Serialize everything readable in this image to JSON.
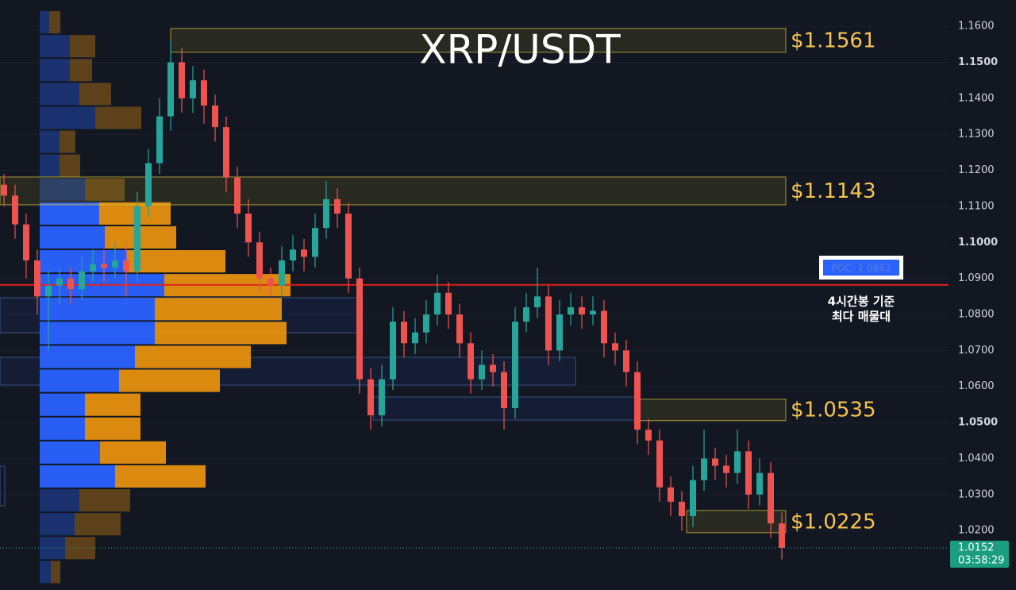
{
  "chart_data": {
    "type": "candlestick",
    "title": "XRP/USDT",
    "ylim": [
      1.0035,
      1.1673
    ],
    "yticks": [
      {
        "value": 1.02,
        "label": "1.0200"
      },
      {
        "value": 1.03,
        "label": "1.0300"
      },
      {
        "value": 1.04,
        "label": "1.0400"
      },
      {
        "value": 1.05,
        "label": "1.0500"
      },
      {
        "value": 1.06,
        "label": "1.0600"
      },
      {
        "value": 1.07,
        "label": "1.0700"
      },
      {
        "value": 1.08,
        "label": "1.0800"
      },
      {
        "value": 1.09,
        "label": "1.0900"
      },
      {
        "value": 1.1,
        "label": "1.1000"
      },
      {
        "value": 1.11,
        "label": "1.1100"
      },
      {
        "value": 1.12,
        "label": "1.1200"
      },
      {
        "value": 1.13,
        "label": "1.1300"
      },
      {
        "value": 1.14,
        "label": "1.1400"
      },
      {
        "value": 1.15,
        "label": "1.1500"
      },
      {
        "value": 1.16,
        "label": "1.1600"
      }
    ],
    "grid": true,
    "up_color": "#26a69a",
    "down_color": "#ef5350",
    "candles": [
      [
        1.116,
        1.119,
        1.11,
        1.113
      ],
      [
        1.113,
        1.116,
        1.101,
        1.105
      ],
      [
        1.105,
        1.108,
        1.09,
        1.095
      ],
      [
        1.095,
        1.098,
        1.08,
        1.085
      ],
      [
        1.085,
        1.092,
        1.07,
        1.088
      ],
      [
        1.088,
        1.093,
        1.083,
        1.09
      ],
      [
        1.09,
        1.093,
        1.083,
        1.087
      ],
      [
        1.087,
        1.096,
        1.084,
        1.092
      ],
      [
        1.092,
        1.098,
        1.089,
        1.094
      ],
      [
        1.094,
        1.098,
        1.089,
        1.093
      ],
      [
        1.093,
        1.1,
        1.09,
        1.095
      ],
      [
        1.095,
        1.099,
        1.085,
        1.092
      ],
      [
        1.092,
        1.114,
        1.089,
        1.11
      ],
      [
        1.11,
        1.126,
        1.107,
        1.122
      ],
      [
        1.122,
        1.14,
        1.119,
        1.135
      ],
      [
        1.135,
        1.1561,
        1.131,
        1.15
      ],
      [
        1.15,
        1.154,
        1.136,
        1.14
      ],
      [
        1.14,
        1.149,
        1.136,
        1.145
      ],
      [
        1.145,
        1.148,
        1.133,
        1.138
      ],
      [
        1.138,
        1.141,
        1.128,
        1.132
      ],
      [
        1.132,
        1.135,
        1.114,
        1.118
      ],
      [
        1.118,
        1.121,
        1.104,
        1.108
      ],
      [
        1.108,
        1.112,
        1.096,
        1.1
      ],
      [
        1.1,
        1.103,
        1.086,
        1.09
      ],
      [
        1.09,
        1.093,
        1.085,
        1.088
      ],
      [
        1.088,
        1.099,
        1.085,
        1.095
      ],
      [
        1.095,
        1.102,
        1.092,
        1.098
      ],
      [
        1.098,
        1.101,
        1.092,
        1.096
      ],
      [
        1.096,
        1.108,
        1.093,
        1.104
      ],
      [
        1.104,
        1.117,
        1.101,
        1.112
      ],
      [
        1.112,
        1.115,
        1.104,
        1.108
      ],
      [
        1.108,
        1.111,
        1.086,
        1.09
      ],
      [
        1.09,
        1.093,
        1.058,
        1.062
      ],
      [
        1.062,
        1.065,
        1.048,
        1.052
      ],
      [
        1.052,
        1.066,
        1.049,
        1.062
      ],
      [
        1.062,
        1.082,
        1.059,
        1.078
      ],
      [
        1.078,
        1.081,
        1.068,
        1.072
      ],
      [
        1.072,
        1.079,
        1.069,
        1.075
      ],
      [
        1.075,
        1.084,
        1.072,
        1.08
      ],
      [
        1.08,
        1.091,
        1.077,
        1.086
      ],
      [
        1.086,
        1.089,
        1.076,
        1.08
      ],
      [
        1.08,
        1.083,
        1.068,
        1.072
      ],
      [
        1.072,
        1.075,
        1.058,
        1.062
      ],
      [
        1.062,
        1.07,
        1.059,
        1.066
      ],
      [
        1.066,
        1.069,
        1.06,
        1.064
      ],
      [
        1.064,
        1.067,
        1.048,
        1.054
      ],
      [
        1.054,
        1.082,
        1.051,
        1.078
      ],
      [
        1.078,
        1.086,
        1.075,
        1.082
      ],
      [
        1.082,
        1.093,
        1.079,
        1.085
      ],
      [
        1.085,
        1.088,
        1.066,
        1.07
      ],
      [
        1.07,
        1.084,
        1.067,
        1.08
      ],
      [
        1.08,
        1.086,
        1.077,
        1.082
      ],
      [
        1.082,
        1.085,
        1.076,
        1.08
      ],
      [
        1.08,
        1.085,
        1.077,
        1.081
      ],
      [
        1.081,
        1.084,
        1.068,
        1.072
      ],
      [
        1.072,
        1.075,
        1.066,
        1.07
      ],
      [
        1.07,
        1.073,
        1.06,
        1.064
      ],
      [
        1.064,
        1.067,
        1.044,
        1.048
      ],
      [
        1.048,
        1.051,
        1.041,
        1.045
      ],
      [
        1.045,
        1.048,
        1.028,
        1.032
      ],
      [
        1.032,
        1.035,
        1.024,
        1.028
      ],
      [
        1.028,
        1.031,
        1.02,
        1.024
      ],
      [
        1.024,
        1.038,
        1.021,
        1.034
      ],
      [
        1.034,
        1.048,
        1.031,
        1.04
      ],
      [
        1.04,
        1.043,
        1.034,
        1.038
      ],
      [
        1.038,
        1.041,
        1.032,
        1.036
      ],
      [
        1.036,
        1.048,
        1.033,
        1.042
      ],
      [
        1.042,
        1.045,
        1.026,
        1.03
      ],
      [
        1.03,
        1.04,
        1.027,
        1.036
      ],
      [
        1.036,
        1.039,
        1.018,
        1.022
      ],
      [
        1.022,
        1.025,
        1.012,
        1.0152
      ]
    ],
    "volume_profile": {
      "buy_color": "#2962ff",
      "sell_color": "#e6900f",
      "buy": [
        12,
        38,
        38,
        50,
        70,
        25,
        25,
        57,
        75,
        82,
        110,
        157,
        145,
        145,
        120,
        100,
        57,
        57,
        76,
        95,
        50,
        44,
        32,
        14
      ],
      "sell": [
        14,
        32,
        28,
        40,
        58,
        20,
        26,
        50,
        90,
        90,
        124,
        159,
        160,
        166,
        146,
        127,
        70,
        70,
        83,
        114,
        64,
        58,
        38,
        12
      ]
    },
    "levels": [
      {
        "label": "$1.1561",
        "value": 1.1561
      },
      {
        "label": "$1.1143",
        "value": 1.1143
      },
      {
        "label": "$1.0535",
        "value": 1.0535
      },
      {
        "label": "$1.0225",
        "value": 1.0225
      }
    ],
    "poc": {
      "label": "POC: 1.0882",
      "value": 1.0882
    },
    "annotation": [
      "4시간봉 기준",
      "최다 매물대"
    ],
    "last_price": 1.0152,
    "countdown": "03:58:29"
  }
}
